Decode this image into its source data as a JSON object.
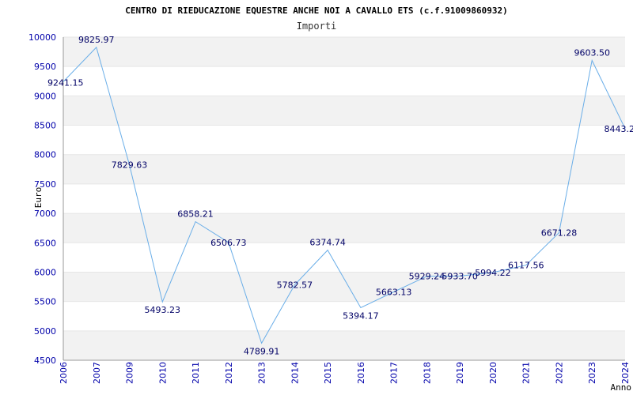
{
  "chart_data": {
    "type": "line",
    "title": "CENTRO DI RIEDUCAZIONE EQUESTRE ANCHE NOI A CAVALLO ETS (c.f.91009860932)",
    "subtitle": "Importi",
    "xlabel": "Anno",
    "ylabel": "Euro",
    "ylim": [
      4500,
      10000
    ],
    "yticks": [
      4500,
      5000,
      5500,
      6000,
      6500,
      7000,
      7500,
      8000,
      8500,
      9000,
      9500,
      10000
    ],
    "categories": [
      "2006",
      "2007",
      "2009",
      "2010",
      "2011",
      "2012",
      "2013",
      "2014",
      "2015",
      "2016",
      "2017",
      "2018",
      "2019",
      "2020",
      "2021",
      "2022",
      "2023",
      "2024"
    ],
    "values": [
      9241.15,
      9825.97,
      7829.63,
      5493.23,
      6858.21,
      6506.73,
      4789.91,
      5782.57,
      6374.74,
      5394.17,
      5663.13,
      5929.24,
      5933.7,
      5994.22,
      6117.56,
      6671.28,
      9603.5,
      8443.2
    ],
    "value_labels": [
      "9241.15",
      "9825.97",
      "7829.63",
      "5493.23",
      "6858.21",
      "6506.73",
      "4789.91",
      "5782.57",
      "6374.74",
      "5394.17",
      "5663.13",
      "5929.24",
      "5933.70",
      "5994.22",
      "6117.56",
      "6671.28",
      "9603.50",
      "8443.2"
    ],
    "grid": true,
    "colors": {
      "line": "#6aaee8",
      "band": "#f2f2f2",
      "tick_text": "#0000aa",
      "label_text": "#000066"
    }
  }
}
